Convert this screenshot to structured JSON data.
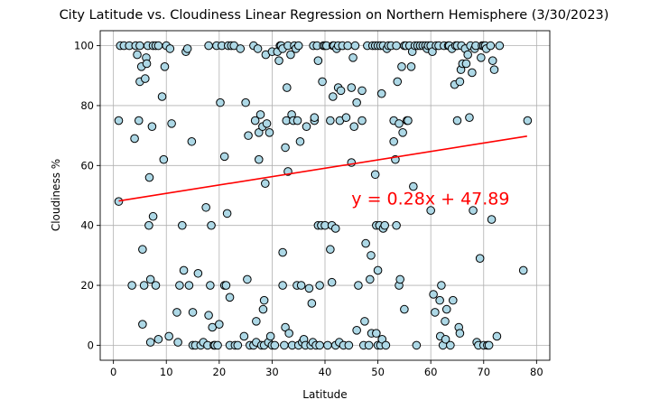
{
  "chart_data": {
    "type": "scatter",
    "title": "City Latitude vs. Cloudiness Linear Regression on Northern Hemisphere (3/30/2023)",
    "xlabel": "Latitude",
    "ylabel": "Cloudiness %",
    "xlim": [
      -2.5,
      82.5
    ],
    "ylim": [
      -5,
      105
    ],
    "xticks": [
      0,
      10,
      20,
      30,
      40,
      50,
      60,
      70,
      80
    ],
    "yticks": [
      0,
      20,
      40,
      60,
      80,
      100
    ],
    "grid": true,
    "point_color": "#add8e6",
    "line_color": "#ff0000",
    "regression": {
      "slope": 0.28,
      "intercept": 47.89,
      "x_range": [
        1,
        78.2
      ]
    },
    "annotation": {
      "text": "y = 0.28x + 47.89",
      "x": 45,
      "y": 47,
      "color": "#ff0000"
    },
    "points": [
      [
        1,
        48
      ],
      [
        1,
        75
      ],
      [
        1.3,
        100
      ],
      [
        2,
        100
      ],
      [
        3,
        100
      ],
      [
        3.5,
        20
      ],
      [
        4,
        69
      ],
      [
        4.2,
        100
      ],
      [
        4.5,
        97
      ],
      [
        4.8,
        75
      ],
      [
        5,
        100
      ],
      [
        5,
        88
      ],
      [
        5.3,
        93
      ],
      [
        5.5,
        32
      ],
      [
        5.5,
        7
      ],
      [
        5.8,
        20
      ],
      [
        6,
        89
      ],
      [
        6.2,
        96
      ],
      [
        6.3,
        94
      ],
      [
        6.5,
        100
      ],
      [
        6.7,
        40
      ],
      [
        6.8,
        56
      ],
      [
        7,
        22
      ],
      [
        7,
        1
      ],
      [
        7.3,
        73
      ],
      [
        7.5,
        43
      ],
      [
        7.5,
        100
      ],
      [
        8,
        100
      ],
      [
        8,
        20
      ],
      [
        8.5,
        2
      ],
      [
        8.5,
        100
      ],
      [
        9.2,
        83
      ],
      [
        9.5,
        62
      ],
      [
        9.7,
        93
      ],
      [
        10,
        100
      ],
      [
        10.5,
        3
      ],
      [
        10.7,
        99
      ],
      [
        11,
        74
      ],
      [
        12,
        11
      ],
      [
        12.2,
        1
      ],
      [
        12.5,
        20
      ],
      [
        13,
        40
      ],
      [
        13.3,
        25
      ],
      [
        13.7,
        98
      ],
      [
        14,
        99
      ],
      [
        14.3,
        20
      ],
      [
        14.8,
        68
      ],
      [
        15,
        11
      ],
      [
        15,
        0
      ],
      [
        15.5,
        0
      ],
      [
        16,
        24
      ],
      [
        16.5,
        0
      ],
      [
        17,
        1
      ],
      [
        17.5,
        46
      ],
      [
        17.8,
        0
      ],
      [
        18,
        10
      ],
      [
        18,
        100
      ],
      [
        18.3,
        20
      ],
      [
        18.5,
        40
      ],
      [
        18.7,
        6
      ],
      [
        19,
        0
      ],
      [
        19.2,
        0
      ],
      [
        19.5,
        100
      ],
      [
        19.7,
        0
      ],
      [
        20,
        7
      ],
      [
        20.2,
        81
      ],
      [
        20.5,
        100
      ],
      [
        21,
        63
      ],
      [
        21,
        20
      ],
      [
        21.3,
        20
      ],
      [
        21.5,
        44
      ],
      [
        21.7,
        100
      ],
      [
        22,
        16
      ],
      [
        22,
        0
      ],
      [
        22.3,
        100
      ],
      [
        22.8,
        100
      ],
      [
        23,
        0
      ],
      [
        23.5,
        0
      ],
      [
        24,
        99
      ],
      [
        24.7,
        3
      ],
      [
        25,
        81
      ],
      [
        25.3,
        22
      ],
      [
        25.5,
        70
      ],
      [
        25.8,
        0
      ],
      [
        26.5,
        0
      ],
      [
        26.5,
        100
      ],
      [
        26.8,
        75
      ],
      [
        27,
        1
      ],
      [
        27,
        8
      ],
      [
        27.3,
        99
      ],
      [
        27.5,
        71
      ],
      [
        27.5,
        62
      ],
      [
        27.8,
        77
      ],
      [
        28,
        0
      ],
      [
        28.2,
        73
      ],
      [
        28.3,
        12
      ],
      [
        28.5,
        15
      ],
      [
        28.5,
        0
      ],
      [
        28.7,
        54
      ],
      [
        28.8,
        97
      ],
      [
        29,
        74
      ],
      [
        29.3,
        1
      ],
      [
        29.5,
        71
      ],
      [
        29.7,
        3
      ],
      [
        30,
        98
      ],
      [
        30,
        0
      ],
      [
        30.5,
        0
      ],
      [
        31,
        98
      ],
      [
        31.3,
        95
      ],
      [
        31.5,
        100
      ],
      [
        31.7,
        100
      ],
      [
        32,
        99
      ],
      [
        32,
        20
      ],
      [
        32,
        31
      ],
      [
        32.3,
        0
      ],
      [
        32.5,
        6
      ],
      [
        32.5,
        66
      ],
      [
        32.7,
        75
      ],
      [
        32.8,
        86
      ],
      [
        33,
        100
      ],
      [
        33,
        58
      ],
      [
        33.2,
        4
      ],
      [
        33.5,
        97
      ],
      [
        33.7,
        77
      ],
      [
        33.8,
        0
      ],
      [
        34,
        75
      ],
      [
        34.2,
        100
      ],
      [
        34.5,
        99
      ],
      [
        34.7,
        20
      ],
      [
        34.8,
        75
      ],
      [
        35,
        100
      ],
      [
        35,
        0
      ],
      [
        35.3,
        68
      ],
      [
        35.5,
        20
      ],
      [
        35.7,
        1
      ],
      [
        36,
        2
      ],
      [
        36.3,
        0
      ],
      [
        36.5,
        73
      ],
      [
        37,
        19
      ],
      [
        37.3,
        0
      ],
      [
        37.5,
        14
      ],
      [
        37.7,
        1
      ],
      [
        37.8,
        100
      ],
      [
        38,
        75
      ],
      [
        38,
        76
      ],
      [
        38.3,
        0
      ],
      [
        38.5,
        100
      ],
      [
        38.7,
        40
      ],
      [
        38.7,
        95
      ],
      [
        39,
        20
      ],
      [
        39,
        0
      ],
      [
        39.3,
        40
      ],
      [
        39.5,
        88
      ],
      [
        39.7,
        100
      ],
      [
        40,
        40
      ],
      [
        40,
        100
      ],
      [
        40.3,
        100
      ],
      [
        40.5,
        0
      ],
      [
        41,
        75
      ],
      [
        41,
        32
      ],
      [
        41.3,
        40
      ],
      [
        41.3,
        21
      ],
      [
        41.5,
        100
      ],
      [
        41.5,
        83
      ],
      [
        41.7,
        100
      ],
      [
        42,
        0
      ],
      [
        42,
        39
      ],
      [
        42.2,
        99
      ],
      [
        42.5,
        100
      ],
      [
        42.5,
        86
      ],
      [
        42.7,
        1
      ],
      [
        42.8,
        75
      ],
      [
        43,
        85
      ],
      [
        43.3,
        100
      ],
      [
        43.5,
        0
      ],
      [
        44,
        76
      ],
      [
        44.3,
        100
      ],
      [
        44.5,
        0
      ],
      [
        45,
        86
      ],
      [
        45,
        61
      ],
      [
        45.3,
        96
      ],
      [
        45.5,
        73
      ],
      [
        45.7,
        100
      ],
      [
        46,
        81
      ],
      [
        46,
        5
      ],
      [
        46.3,
        20
      ],
      [
        47,
        75
      ],
      [
        47,
        85
      ],
      [
        47.3,
        0
      ],
      [
        47.5,
        8
      ],
      [
        47.7,
        34
      ],
      [
        48,
        100
      ],
      [
        48.3,
        0
      ],
      [
        48.5,
        22
      ],
      [
        48.7,
        30
      ],
      [
        48.8,
        4
      ],
      [
        49,
        100
      ],
      [
        49.5,
        100
      ],
      [
        49.5,
        57
      ],
      [
        49.7,
        40
      ],
      [
        49.7,
        4
      ],
      [
        50,
        100
      ],
      [
        50,
        25
      ],
      [
        50,
        0
      ],
      [
        50.3,
        40
      ],
      [
        50.5,
        0
      ],
      [
        50.5,
        100
      ],
      [
        50.7,
        84
      ],
      [
        50.8,
        2
      ],
      [
        51,
        39
      ],
      [
        51,
        100
      ],
      [
        51.3,
        40
      ],
      [
        51.5,
        0
      ],
      [
        51.7,
        99
      ],
      [
        52,
        100
      ],
      [
        52.5,
        100
      ],
      [
        53,
        68
      ],
      [
        53,
        75
      ],
      [
        53.3,
        62
      ],
      [
        53.5,
        100
      ],
      [
        53.5,
        40
      ],
      [
        53.7,
        88
      ],
      [
        54,
        74
      ],
      [
        54,
        20
      ],
      [
        54.2,
        22
      ],
      [
        54.5,
        93
      ],
      [
        54.7,
        71
      ],
      [
        55,
        12
      ],
      [
        55,
        100
      ],
      [
        55.3,
        100
      ],
      [
        55.5,
        75
      ],
      [
        55.7,
        75
      ],
      [
        56,
        100
      ],
      [
        56.3,
        93
      ],
      [
        56.5,
        98
      ],
      [
        56.7,
        53
      ],
      [
        57,
        100
      ],
      [
        57.3,
        0
      ],
      [
        57.5,
        100
      ],
      [
        58,
        100
      ],
      [
        58.5,
        100
      ],
      [
        59,
        100
      ],
      [
        59.3,
        99
      ],
      [
        59.5,
        100
      ],
      [
        60,
        45
      ],
      [
        60,
        100
      ],
      [
        60.3,
        98
      ],
      [
        60.5,
        17
      ],
      [
        60.8,
        11
      ],
      [
        61,
        100
      ],
      [
        61.5,
        100
      ],
      [
        61.7,
        15
      ],
      [
        61.8,
        3
      ],
      [
        62,
        20
      ],
      [
        62.3,
        0
      ],
      [
        62.5,
        100
      ],
      [
        62.7,
        8
      ],
      [
        62.8,
        2
      ],
      [
        63,
        12
      ],
      [
        63.3,
        100
      ],
      [
        63.5,
        100
      ],
      [
        63.7,
        0
      ],
      [
        64,
        99
      ],
      [
        64.2,
        15
      ],
      [
        64.5,
        87
      ],
      [
        64.7,
        100
      ],
      [
        65,
        75
      ],
      [
        65,
        100
      ],
      [
        65.3,
        6
      ],
      [
        65.5,
        4
      ],
      [
        65.5,
        88
      ],
      [
        65.7,
        92
      ],
      [
        65.8,
        100
      ],
      [
        66,
        94
      ],
      [
        66.5,
        99
      ],
      [
        66.7,
        94
      ],
      [
        67,
        97
      ],
      [
        67.3,
        76
      ],
      [
        67.5,
        100
      ],
      [
        67.8,
        91
      ],
      [
        68,
        45
      ],
      [
        68.3,
        99
      ],
      [
        68.5,
        100
      ],
      [
        68.7,
        1
      ],
      [
        69,
        0
      ],
      [
        69.3,
        29
      ],
      [
        69.5,
        96
      ],
      [
        69.7,
        100
      ],
      [
        70,
        100
      ],
      [
        70,
        0
      ],
      [
        70.3,
        100
      ],
      [
        70.5,
        99
      ],
      [
        70.7,
        0
      ],
      [
        71,
        0
      ],
      [
        71.3,
        100
      ],
      [
        71.5,
        42
      ],
      [
        71.7,
        95
      ],
      [
        72,
        92
      ],
      [
        72.5,
        3
      ],
      [
        73,
        100
      ],
      [
        77.5,
        25
      ],
      [
        78.3,
        75
      ]
    ]
  }
}
